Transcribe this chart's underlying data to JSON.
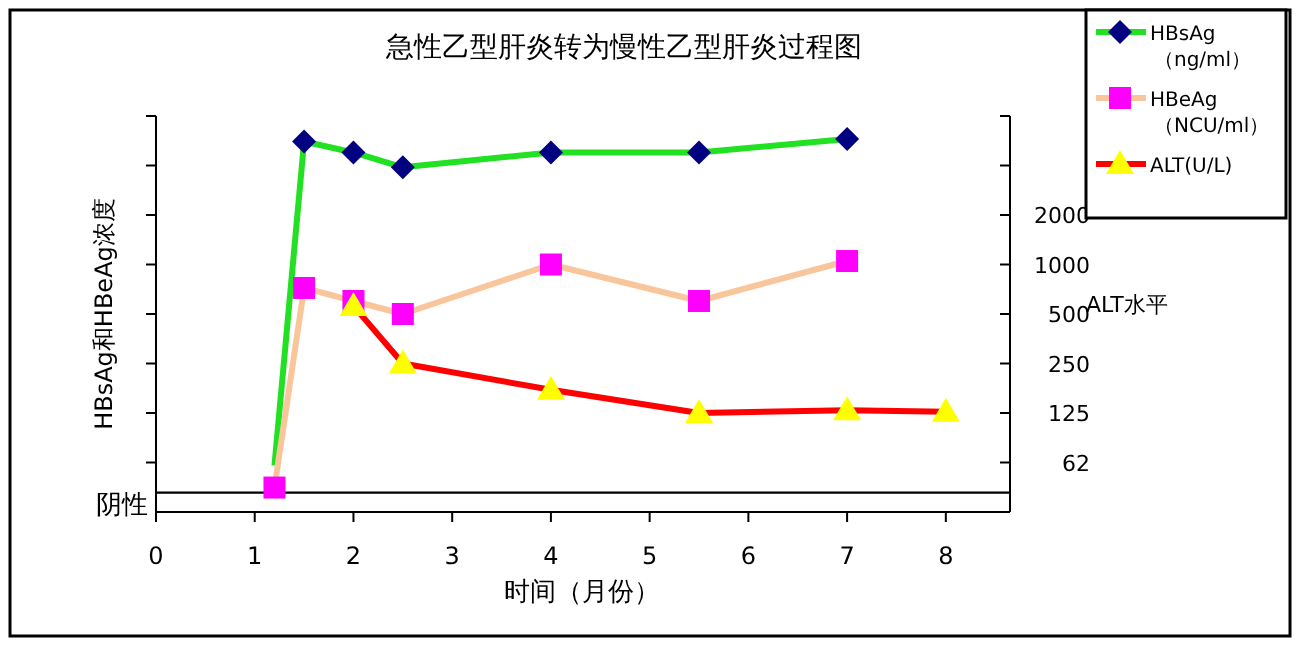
{
  "chart_data": {
    "type": "line",
    "title": "急性乙型肝炎转为慢性乙型肝炎过程图",
    "xlabel": "时间（月份）",
    "ylabel": "HBsAg和HBeAg浓度",
    "y2label": "ALT水平",
    "x": [
      1.2,
      1.5,
      2,
      2.5,
      4,
      5.5,
      7
    ],
    "xlim": [
      0,
      8.65
    ],
    "xticks": [
      0,
      1,
      2,
      3,
      4,
      5,
      6,
      7,
      8
    ],
    "log": "y2",
    "y2lim": [
      31.25,
      8000
    ],
    "y2ticks": [
      {
        "value": 62.5,
        "label": "62"
      },
      125,
      250,
      500,
      1000,
      2000,
      {
        "value": 4000,
        "label": null
      },
      {
        "value": 8000,
        "label": null
      }
    ],
    "ref_lines": [
      {
        "axis": "y2",
        "value": 41,
        "label": "阴性",
        "color": "#000000"
      }
    ],
    "legend": "right",
    "series": [
      {
        "name": "HBsAg（ng/ml）",
        "color": "#22e022",
        "axis": "y2",
        "marker": "diamond",
        "colors": [
          null,
          "#000080",
          "#000080",
          "#000080",
          "#000080",
          "#000080",
          "#000080"
        ],
        "values": [
          60,
          5600,
          4800,
          3900,
          4800,
          4800,
          5800
        ]
      },
      {
        "name": "HBeAg（NCU/ml）",
        "color": "#f9c59b",
        "axis": "y2",
        "marker": "square",
        "colors": [
          "#ff00ff",
          "#ff00ff",
          "#ff00ff",
          "#ff00ff",
          "#ff00ff",
          "#ff00ff",
          "#ff00ff"
        ],
        "values": [
          44,
          720,
          600,
          500,
          1000,
          600,
          1050
        ]
      },
      {
        "name": "ALT(U/L)",
        "color": "#ff0000",
        "axis": "y2",
        "marker": "triangle",
        "x": [
          2,
          2.5,
          4,
          5.5,
          7,
          8
        ],
        "colors": [
          "#ffff00",
          "#ffff00",
          "#ffff00",
          "#ffff00",
          "#ffff00",
          "#ffff00"
        ],
        "values": [
          560,
          250,
          173,
          125,
          130,
          127
        ]
      }
    ]
  }
}
